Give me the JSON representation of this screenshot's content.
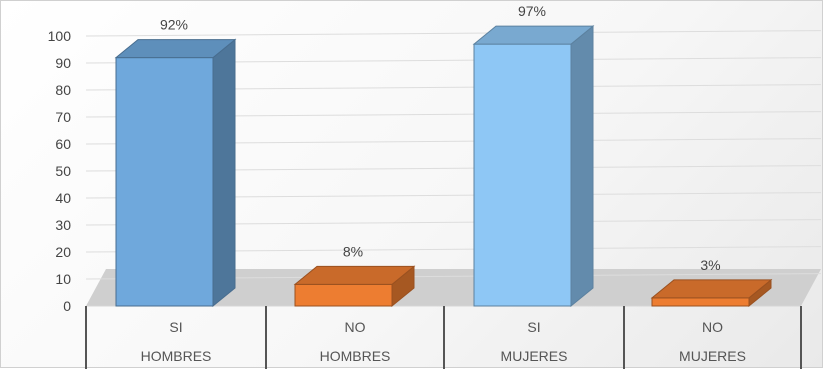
{
  "chart_data": {
    "type": "bar",
    "title": "",
    "xlabel": "",
    "ylabel": "",
    "ylim": [
      0,
      100
    ],
    "y_ticks": [
      0,
      10,
      20,
      30,
      40,
      50,
      60,
      70,
      80,
      90,
      100
    ],
    "grid": true,
    "legend": "none",
    "categories": [
      {
        "line1": "SI",
        "line2": "HOMBRES"
      },
      {
        "line1": "NO",
        "line2": "HOMBRES"
      },
      {
        "line1": "SI",
        "line2": "MUJERES"
      },
      {
        "line1": "NO",
        "line2": "MUJERES"
      }
    ],
    "values": [
      92,
      8,
      97,
      3
    ],
    "data_labels": [
      "92%",
      "8%",
      "97%",
      "3%"
    ],
    "colors": [
      "#6fa8dc",
      "#ed7d31",
      "#8ec7f5",
      "#ed7d31"
    ]
  }
}
